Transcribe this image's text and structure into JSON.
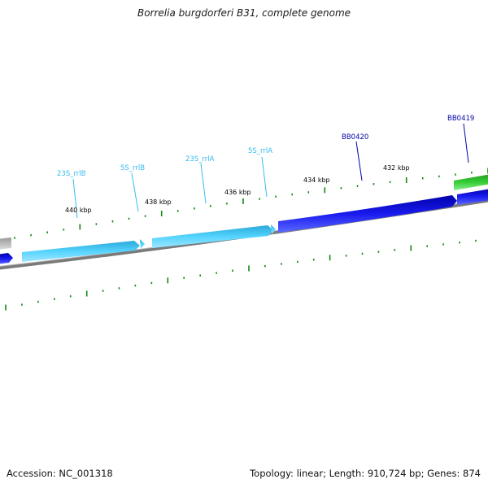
{
  "title": "Borrelia burgdorferi B31, complete genome",
  "footer": {
    "accession": "Accession: NC_001318",
    "summary": "Topology: linear; Length: 910,724 bp; Genes: 874"
  },
  "scale_ticks": [
    "440 kbp",
    "438 kbp",
    "436 kbp",
    "434 kbp",
    "432 kbp"
  ],
  "gene_labels": [
    {
      "text": "23S_rrlB",
      "color": "#33bbee"
    },
    {
      "text": "5S_rrlB",
      "color": "#33bbee"
    },
    {
      "text": "23S_rrlA",
      "color": "#33bbee"
    },
    {
      "text": "5S_rrlA",
      "color": "#33bbee"
    },
    {
      "text": "BB0420",
      "color": "#0000aa"
    },
    {
      "text": "BB0419",
      "color": "#0000aa"
    }
  ],
  "colors": {
    "rRNA": "#44ccff",
    "cds": "#1a1aee",
    "cds_alt": "#33bb33",
    "backbone": "#888888",
    "tick": "#118811"
  }
}
